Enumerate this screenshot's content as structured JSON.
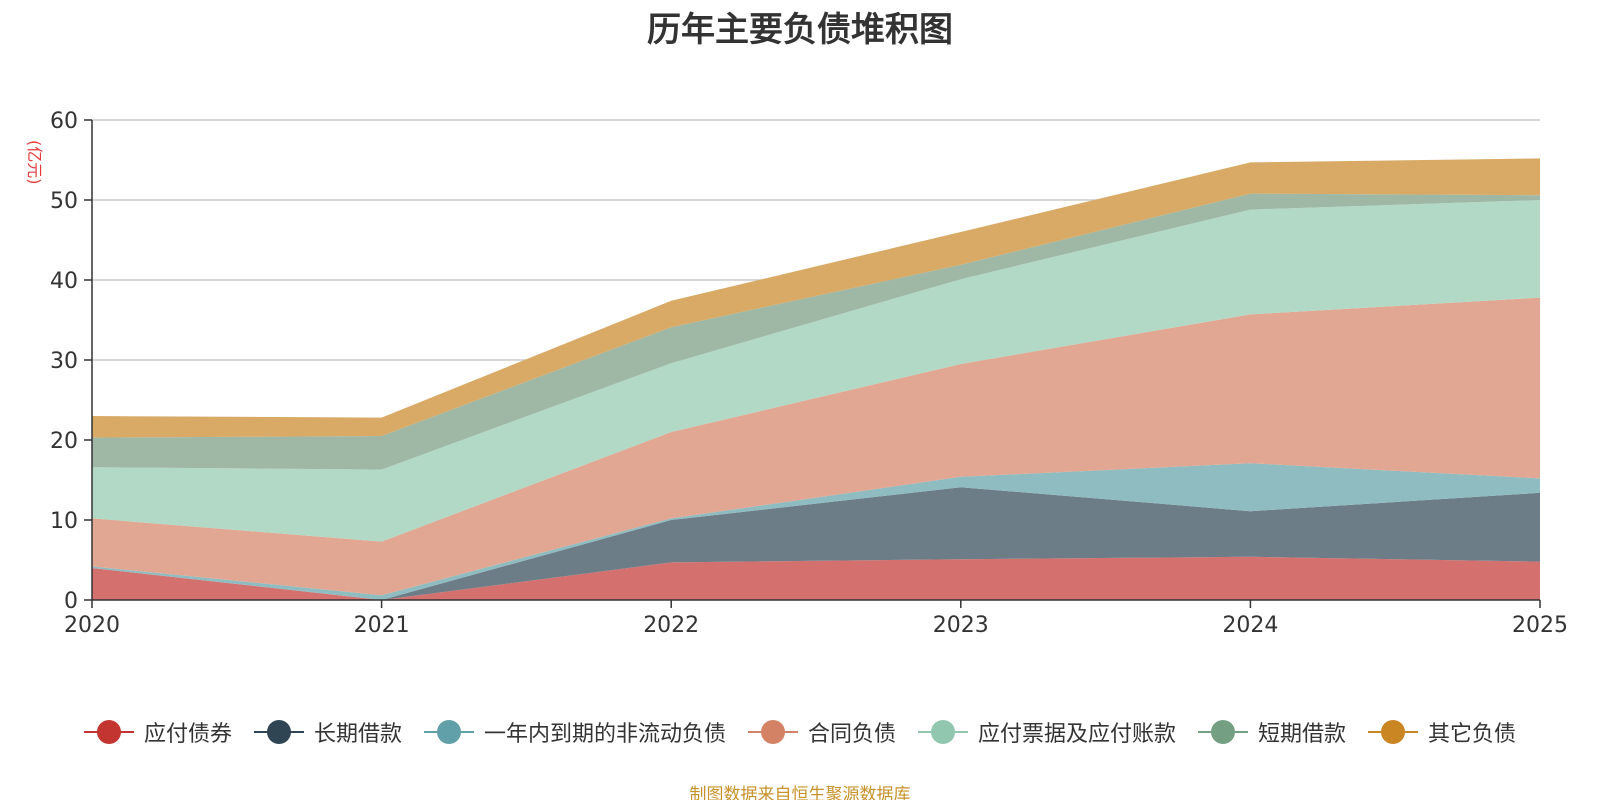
{
  "chart_data": {
    "type": "area",
    "stacked": true,
    "title": "历年主要负债堆积图",
    "unit": "(亿元)",
    "x": [
      "2020",
      "2021",
      "2022",
      "2023",
      "2024",
      "2025"
    ],
    "ylim": [
      0,
      60
    ],
    "yticks": [
      0,
      10,
      20,
      30,
      40,
      50,
      60
    ],
    "grid": true,
    "legend_position": "bottom",
    "series": [
      {
        "name": "应付债券",
        "color": "#c23531",
        "fill": "#d4716f",
        "values": [
          4.0,
          0.0,
          4.7,
          5.1,
          5.4,
          4.8
        ]
      },
      {
        "name": "长期借款",
        "color": "#2f4554",
        "fill": "#6d7d88",
        "values": [
          0.0,
          0.0,
          5.3,
          9.0,
          5.7,
          8.6
        ]
      },
      {
        "name": "一年内到期的非流动负债",
        "color": "#61a0a8",
        "fill": "#8fbcc1",
        "values": [
          0.2,
          0.6,
          0.2,
          1.3,
          6.0,
          1.8
        ]
      },
      {
        "name": "合同负债",
        "color": "#d48265",
        "fill": "#e1a792",
        "values": [
          6.0,
          6.7,
          10.8,
          14.1,
          18.6,
          22.6
        ]
      },
      {
        "name": "应付票据及应付账款",
        "color": "#91c7ae",
        "fill": "#b2d9c6",
        "values": [
          6.4,
          9.0,
          8.6,
          10.6,
          13.1,
          12.2
        ]
      },
      {
        "name": "短期借款",
        "color": "#749f83",
        "fill": "#9fb8a6",
        "values": [
          3.7,
          4.2,
          4.5,
          1.8,
          2.0,
          0.6
        ]
      },
      {
        "name": "其它负债",
        "color": "#ca8622",
        "fill": "#d8aa65",
        "values": [
          2.7,
          2.3,
          3.3,
          4.1,
          3.9,
          4.6
        ]
      }
    ]
  },
  "footer": {
    "source": "制图数据来自恒生聚源数据库"
  }
}
